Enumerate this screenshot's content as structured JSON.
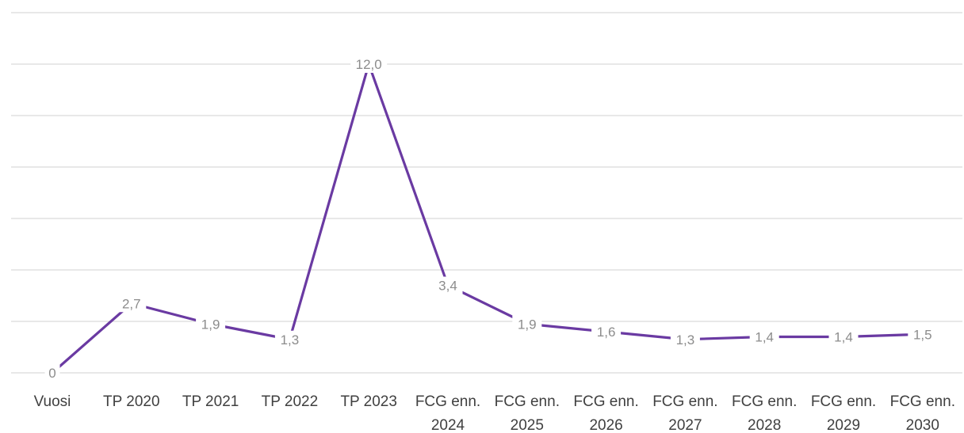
{
  "chart_data": {
    "type": "line",
    "title": "",
    "xlabel": "",
    "ylabel": "",
    "categories": [
      [
        "Vuosi"
      ],
      [
        "TP 2020"
      ],
      [
        "TP 2021"
      ],
      [
        "TP 2022"
      ],
      [
        "TP 2023"
      ],
      [
        "FCG enn.",
        "2024"
      ],
      [
        "FCG enn.",
        "2025"
      ],
      [
        "FCG enn.",
        "2026"
      ],
      [
        "FCG enn.",
        "2027"
      ],
      [
        "FCG enn.",
        "2028"
      ],
      [
        "FCG enn.",
        "2029"
      ],
      [
        "FCG enn.",
        "2030"
      ]
    ],
    "series": [
      {
        "values": [
          0,
          2.7,
          1.9,
          1.3,
          12.0,
          3.4,
          1.9,
          1.6,
          1.3,
          1.4,
          1.4,
          1.5
        ],
        "labels": [
          "0",
          "2,7",
          "1,9",
          "1,3",
          "12,0",
          "3,4",
          "1,9",
          "1,6",
          "1,3",
          "1,4",
          "1,4",
          "1,5"
        ],
        "color": "#6a3aa2"
      }
    ],
    "ylim": [
      0,
      14
    ],
    "y_gridlines": [
      0,
      2,
      4,
      6,
      8,
      10,
      12,
      14
    ],
    "grid": true,
    "legend": "none"
  }
}
